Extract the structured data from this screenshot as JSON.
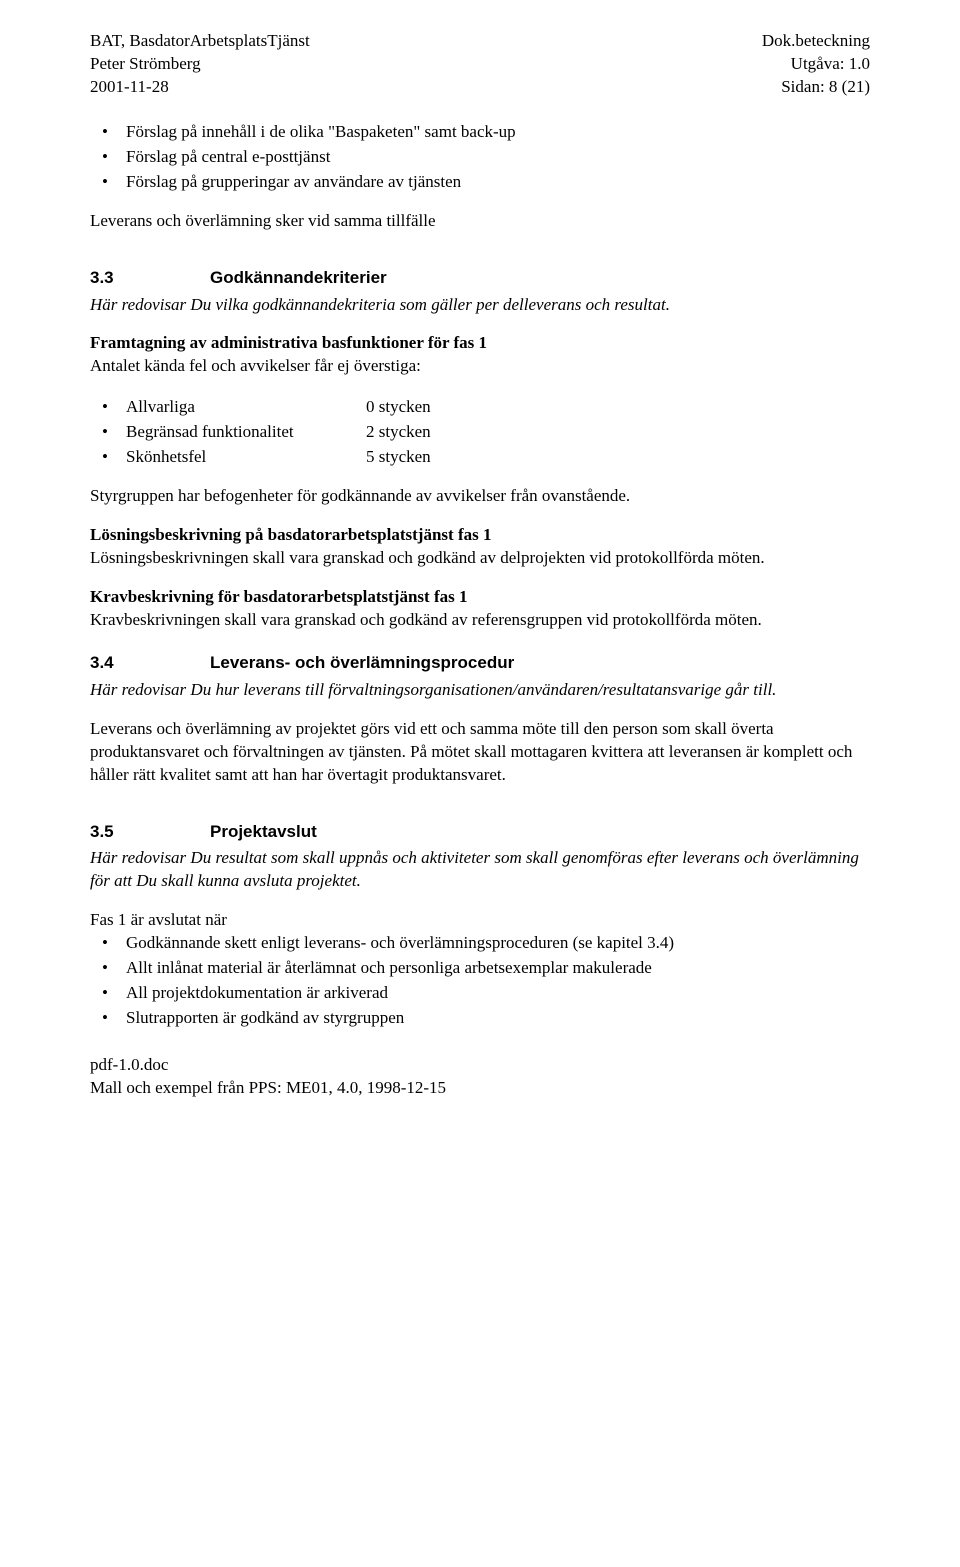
{
  "header": {
    "left1": "BAT, BasdatorArbetsplatsTjänst",
    "left2": "Peter Strömberg",
    "left3": "2001-11-28",
    "right1": "Dok.beteckning",
    "right2": "Utgåva: 1.0",
    "right3": "Sidan: 8 (21)"
  },
  "top_bullets": [
    "Förslag på innehåll i de olika \"Baspaketen\" samt back-up",
    "Förslag på central e-posttjänst",
    "Förslag på grupperingar av användare av tjänsten"
  ],
  "leverans_line": "Leverans och överlämning sker vid samma tillfälle",
  "s33": {
    "num": "3.3",
    "title": "Godkännandekriterier",
    "intro_italic": "Här redovisar Du vilka godkännandekriteria som gäller per delleverans och resultat.",
    "framtagning_head": "Framtagning av administrativa basfunktioner för fas 1",
    "framtagning_line": "Antalet kända fel och avvikelser får ej överstiga:",
    "criteria": [
      {
        "label": "Allvarliga",
        "value": "0 stycken"
      },
      {
        "label": "Begränsad funktionalitet",
        "value": "2 stycken"
      },
      {
        "label": "Skönhetsfel",
        "value": "5 stycken"
      }
    ],
    "styrgrupp": "Styrgruppen har befogenheter för godkännande av avvikelser från ovanstående.",
    "losning_head": "Lösningsbeskrivning på basdatorarbetsplatstjänst fas 1",
    "losning_body": "Lösningsbeskrivningen skall vara granskad och godkänd av delprojekten vid protokollförda möten.",
    "krav_head": "Kravbeskrivning för basdatorarbetsplatstjänst fas 1",
    "krav_body": "Kravbeskrivningen skall vara granskad och godkänd av referensgruppen vid protokollförda möten."
  },
  "s34": {
    "num": "3.4",
    "title": "Leverans- och överlämningsprocedur",
    "intro_italic": "Här redovisar Du hur leverans till förvaltningsorganisationen/användaren/resultatansvarige går till.",
    "body": "Leverans och överlämning av projektet görs vid ett och samma möte till den person som skall överta produktansvaret och förvaltningen av tjänsten. På mötet skall mottagaren kvittera att leveransen är komplett och håller rätt kvalitet samt att han har övertagit produktansvaret."
  },
  "s35": {
    "num": "3.5",
    "title": "Projektavslut",
    "intro_italic": "Här redovisar Du resultat som skall uppnås och aktiviteter som skall genomföras efter leverans och överlämning för att Du skall kunna avsluta projektet.",
    "fas_line": "Fas 1 är avslutat när",
    "bullets": [
      "Godkännande skett enligt leverans- och överlämningsproceduren (se kapitel 3.4)",
      "Allt inlånat material är återlämnat och personliga arbetsexemplar makulerade",
      "All projektdokumentation är arkiverad",
      "Slutrapporten är godkänd av styrgruppen"
    ]
  },
  "footer": {
    "line1": "pdf-1.0.doc",
    "line2": "Mall och exempel från PPS: ME01, 4.0, 1998-12-15"
  },
  "colors": {
    "text": "#000000",
    "background": "#ffffff"
  },
  "typography": {
    "body_font": "Times New Roman",
    "heading_font": "Arial",
    "body_size_pt": 12,
    "heading_size_pt": 12
  }
}
